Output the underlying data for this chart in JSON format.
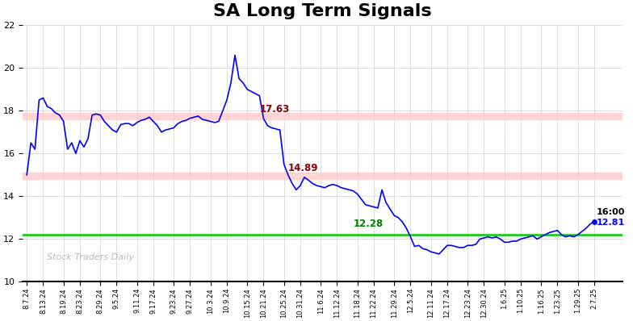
{
  "title": "SA Long Term Signals",
  "title_fontsize": 16,
  "title_fontweight": "bold",
  "ylim": [
    10,
    22
  ],
  "yticks": [
    10,
    12,
    14,
    16,
    18,
    20,
    22
  ],
  "line_color": "blue",
  "line_width": 1.2,
  "hline_red1": 17.75,
  "hline_red2": 14.95,
  "hline_green": 12.2,
  "annotation_17_63_label": "17.63",
  "annotation_14_89_label": "14.89",
  "annotation_12_28_label": "12.28",
  "annotation_color_red": "#8b0000",
  "annotation_color_green": "green",
  "last_price": 12.81,
  "last_time_label": "16:00",
  "watermark": "Stock Traders Daily",
  "xtick_labels": [
    "8.7.24",
    "8.13.24",
    "8.19.24",
    "8.23.24",
    "8.29.24",
    "9.5.24",
    "9.11.24",
    "9.17.24",
    "9.23.24",
    "9.27.24",
    "10.3.24",
    "10.9.24",
    "10.15.24",
    "10.21.24",
    "10.25.24",
    "10.31.24",
    "11.6.24",
    "11.12.24",
    "11.18.24",
    "11.22.24",
    "11.29.24",
    "12.5.24",
    "12.11.24",
    "12.17.24",
    "12.23.24",
    "12.30.24",
    "1.6.25",
    "1.10.25",
    "1.16.25",
    "1.23.25",
    "1.29.25",
    "2.7.25"
  ],
  "price_data": [
    15.0,
    16.5,
    16.2,
    18.5,
    18.6,
    18.2,
    18.1,
    17.9,
    17.8,
    17.5,
    16.2,
    16.5,
    16.0,
    16.6,
    16.3,
    16.7,
    17.8,
    17.85,
    17.8,
    17.5,
    17.3,
    17.1,
    17.0,
    17.35,
    17.4,
    17.4,
    17.3,
    17.45,
    17.55,
    17.6,
    17.7,
    17.5,
    17.3,
    17.0,
    17.1,
    17.15,
    17.2,
    17.4,
    17.5,
    17.55,
    17.65,
    17.7,
    17.75,
    17.6,
    17.55,
    17.5,
    17.45,
    17.5,
    18.0,
    18.5,
    19.3,
    20.6,
    19.5,
    19.3,
    19.0,
    18.9,
    18.8,
    18.7,
    17.63,
    17.3,
    17.2,
    17.15,
    17.1,
    15.5,
    15.0,
    14.6,
    14.3,
    14.5,
    14.89,
    14.75,
    14.6,
    14.5,
    14.45,
    14.4,
    14.5,
    14.55,
    14.5,
    14.4,
    14.35,
    14.3,
    14.25,
    14.1,
    13.85,
    13.6,
    13.55,
    13.5,
    13.45,
    14.3,
    13.7,
    13.4,
    13.1,
    13.0,
    12.8,
    12.5,
    12.1,
    11.65,
    11.7,
    11.55,
    11.5,
    11.4,
    11.35,
    11.3,
    11.5,
    11.7,
    11.7,
    11.65,
    11.6,
    11.6,
    11.7,
    11.7,
    11.75,
    12.0,
    12.05,
    12.1,
    12.05,
    12.1,
    12.0,
    11.85,
    11.85,
    11.9,
    11.9,
    12.0,
    12.05,
    12.1,
    12.15,
    12.0,
    12.1,
    12.2,
    12.3,
    12.35,
    12.4,
    12.2,
    12.1,
    12.15,
    12.1,
    12.2,
    12.35,
    12.5,
    12.7,
    12.81
  ]
}
